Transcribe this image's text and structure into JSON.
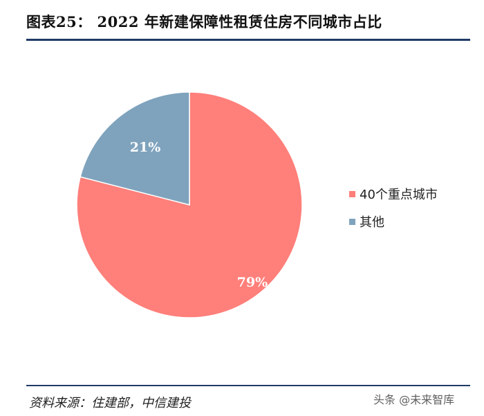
{
  "header": {
    "title": "图表25：  2022 年新建保障性租赁住房不同城市占比"
  },
  "chart_data": {
    "type": "pie",
    "series": [
      {
        "name": "40个重点城市",
        "value": 79,
        "label": "79%",
        "color": "#ff7f7a"
      },
      {
        "name": "其他",
        "value": 21,
        "label": "21%",
        "color": "#7fa3bd"
      }
    ],
    "start": "12 o'clock, clockwise",
    "legend": "right"
  },
  "footer": {
    "source": "资料来源：住建部，中信建投",
    "watermark": "头条 @未来智库"
  }
}
